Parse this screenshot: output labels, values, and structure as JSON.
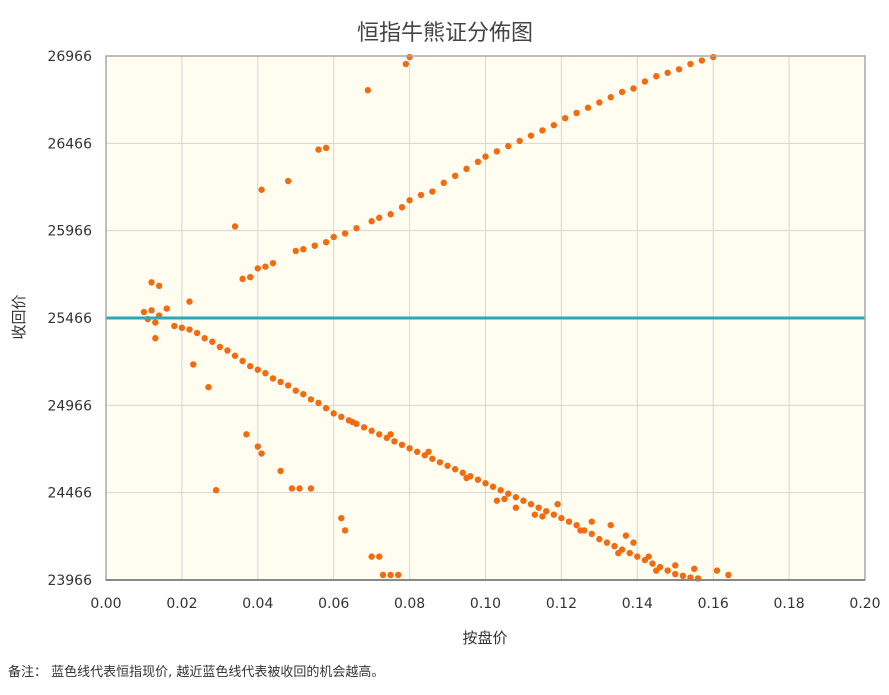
{
  "footnote": "备注： 蓝色线代表恒指现价, 越近蓝色线代表被收回的机会越高。",
  "chart_data": {
    "type": "scatter",
    "title": "恒指牛熊证分佈图",
    "xlabel": "按盘价",
    "ylabel": "收回价",
    "xlim": [
      0,
      0.2
    ],
    "ylim": [
      23966,
      26966
    ],
    "x_ticks": [
      "0.00",
      "0.02",
      "0.04",
      "0.06",
      "0.08",
      "0.10",
      "0.12",
      "0.14",
      "0.16",
      "0.18",
      "0.20"
    ],
    "y_ticks": [
      "23966",
      "24466",
      "24966",
      "25466",
      "25966",
      "26466",
      "26966"
    ],
    "grid": true,
    "reference_line": {
      "y": 25466,
      "color": "#2aa7b8"
    },
    "point_color": "#f26b0f",
    "background_color": "#fffcf0",
    "series": [
      {
        "values": [
          [
            0.01,
            25500
          ],
          [
            0.011,
            25460
          ],
          [
            0.012,
            25510
          ],
          [
            0.013,
            25440
          ],
          [
            0.014,
            25480
          ],
          [
            0.012,
            25670
          ],
          [
            0.014,
            25650
          ],
          [
            0.016,
            25520
          ],
          [
            0.013,
            25350
          ],
          [
            0.022,
            25560
          ],
          [
            0.034,
            25990
          ],
          [
            0.041,
            26200
          ],
          [
            0.048,
            26250
          ],
          [
            0.056,
            26430
          ],
          [
            0.058,
            26440
          ],
          [
            0.069,
            26770
          ],
          [
            0.079,
            26920
          ],
          [
            0.08,
            26960
          ],
          [
            0.036,
            25690
          ],
          [
            0.038,
            25700
          ],
          [
            0.04,
            25750
          ],
          [
            0.042,
            25760
          ],
          [
            0.044,
            25780
          ],
          [
            0.05,
            25850
          ],
          [
            0.052,
            25860
          ],
          [
            0.055,
            25880
          ],
          [
            0.058,
            25900
          ],
          [
            0.06,
            25930
          ],
          [
            0.063,
            25950
          ],
          [
            0.066,
            25980
          ],
          [
            0.07,
            26020
          ],
          [
            0.072,
            26040
          ],
          [
            0.075,
            26060
          ],
          [
            0.078,
            26100
          ],
          [
            0.08,
            26140
          ],
          [
            0.083,
            26170
          ],
          [
            0.086,
            26190
          ],
          [
            0.089,
            26240
          ],
          [
            0.092,
            26280
          ],
          [
            0.095,
            26320
          ],
          [
            0.098,
            26360
          ],
          [
            0.1,
            26390
          ],
          [
            0.103,
            26420
          ],
          [
            0.106,
            26450
          ],
          [
            0.109,
            26480
          ],
          [
            0.112,
            26510
          ],
          [
            0.115,
            26540
          ],
          [
            0.118,
            26570
          ],
          [
            0.121,
            26610
          ],
          [
            0.124,
            26640
          ],
          [
            0.127,
            26670
          ],
          [
            0.13,
            26700
          ],
          [
            0.133,
            26730
          ],
          [
            0.136,
            26760
          ],
          [
            0.139,
            26780
          ],
          [
            0.142,
            26820
          ],
          [
            0.145,
            26850
          ],
          [
            0.148,
            26870
          ],
          [
            0.151,
            26890
          ],
          [
            0.154,
            26920
          ],
          [
            0.157,
            26940
          ],
          [
            0.16,
            26960
          ],
          [
            0.018,
            25420
          ],
          [
            0.02,
            25410
          ],
          [
            0.022,
            25400
          ],
          [
            0.024,
            25380
          ],
          [
            0.026,
            25350
          ],
          [
            0.028,
            25330
          ],
          [
            0.03,
            25300
          ],
          [
            0.032,
            25280
          ],
          [
            0.034,
            25250
          ],
          [
            0.036,
            25220
          ],
          [
            0.038,
            25190
          ],
          [
            0.04,
            25170
          ],
          [
            0.042,
            25150
          ],
          [
            0.044,
            25120
          ],
          [
            0.046,
            25100
          ],
          [
            0.048,
            25080
          ],
          [
            0.05,
            25050
          ],
          [
            0.052,
            25030
          ],
          [
            0.054,
            25000
          ],
          [
            0.056,
            24980
          ],
          [
            0.058,
            24950
          ],
          [
            0.06,
            24920
          ],
          [
            0.062,
            24900
          ],
          [
            0.064,
            24880
          ],
          [
            0.066,
            24860
          ],
          [
            0.068,
            24840
          ],
          [
            0.07,
            24820
          ],
          [
            0.072,
            24800
          ],
          [
            0.074,
            24780
          ],
          [
            0.076,
            24760
          ],
          [
            0.078,
            24740
          ],
          [
            0.08,
            24720
          ],
          [
            0.082,
            24700
          ],
          [
            0.084,
            24680
          ],
          [
            0.086,
            24660
          ],
          [
            0.088,
            24640
          ],
          [
            0.09,
            24620
          ],
          [
            0.092,
            24600
          ],
          [
            0.094,
            24580
          ],
          [
            0.096,
            24560
          ],
          [
            0.098,
            24540
          ],
          [
            0.1,
            24520
          ],
          [
            0.102,
            24500
          ],
          [
            0.104,
            24480
          ],
          [
            0.106,
            24460
          ],
          [
            0.108,
            24440
          ],
          [
            0.11,
            24420
          ],
          [
            0.112,
            24400
          ],
          [
            0.114,
            24380
          ],
          [
            0.116,
            24360
          ],
          [
            0.118,
            24340
          ],
          [
            0.12,
            24320
          ],
          [
            0.122,
            24300
          ],
          [
            0.124,
            24280
          ],
          [
            0.126,
            24250
          ],
          [
            0.128,
            24230
          ],
          [
            0.13,
            24200
          ],
          [
            0.132,
            24180
          ],
          [
            0.134,
            24160
          ],
          [
            0.136,
            24140
          ],
          [
            0.138,
            24120
          ],
          [
            0.14,
            24100
          ],
          [
            0.142,
            24080
          ],
          [
            0.144,
            24060
          ],
          [
            0.146,
            24040
          ],
          [
            0.148,
            24020
          ],
          [
            0.15,
            24000
          ],
          [
            0.152,
            23990
          ],
          [
            0.154,
            23980
          ],
          [
            0.156,
            23975
          ],
          [
            0.161,
            24020
          ],
          [
            0.164,
            23995
          ],
          [
            0.023,
            25200
          ],
          [
            0.027,
            25070
          ],
          [
            0.029,
            24480
          ],
          [
            0.037,
            24800
          ],
          [
            0.04,
            24730
          ],
          [
            0.041,
            24690
          ],
          [
            0.046,
            24590
          ],
          [
            0.049,
            24490
          ],
          [
            0.051,
            24490
          ],
          [
            0.054,
            24490
          ],
          [
            0.062,
            24320
          ],
          [
            0.063,
            24250
          ],
          [
            0.07,
            24100
          ],
          [
            0.072,
            24100
          ],
          [
            0.073,
            23995
          ],
          [
            0.075,
            23995
          ],
          [
            0.077,
            23995
          ],
          [
            0.065,
            24870
          ],
          [
            0.075,
            24800
          ],
          [
            0.085,
            24700
          ],
          [
            0.095,
            24550
          ],
          [
            0.105,
            24430
          ],
          [
            0.115,
            24330
          ],
          [
            0.125,
            24250
          ],
          [
            0.135,
            24120
          ],
          [
            0.145,
            24020
          ],
          [
            0.143,
            24100
          ],
          [
            0.15,
            24050
          ],
          [
            0.155,
            24030
          ],
          [
            0.119,
            24400
          ],
          [
            0.128,
            24300
          ],
          [
            0.133,
            24280
          ],
          [
            0.137,
            24220
          ],
          [
            0.139,
            24180
          ],
          [
            0.113,
            24340
          ],
          [
            0.108,
            24380
          ],
          [
            0.103,
            24420
          ]
        ]
      }
    ]
  }
}
